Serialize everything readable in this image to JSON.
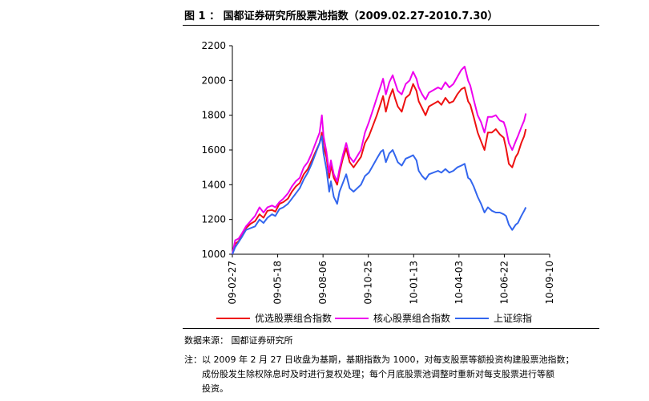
{
  "figure": {
    "title": "图 1 ： 国都证券研究所股票池指数（2009.02.27-2010.7.30）",
    "source": "数据来源： 国都证券研究所",
    "notes": [
      "注：以 2009 年 2 月 27 日收盘为基期，基期指数为 1000，对每支股票等额投资构建股票池指数；",
      "成份股发生除权除息时及时进行复权处理；每个月底股票池调整时重新对每支股票进行等额",
      "投资。"
    ]
  },
  "chart_data": {
    "type": "line",
    "title": "",
    "xlabel": "",
    "ylabel": "",
    "ylim": [
      1000,
      2200
    ],
    "yticks": [
      1000,
      1200,
      1400,
      1600,
      1800,
      2000,
      2200
    ],
    "xlim": [
      "2009-02-27",
      "2010-09-10"
    ],
    "xticks": [
      "09-02-27",
      "09-05-18",
      "09-08-06",
      "09-10-25",
      "10-01-13",
      "10-04-03",
      "10-06-22",
      "10-09-10"
    ],
    "xtick_dates": [
      "2009-02-27",
      "2009-05-18",
      "2009-08-06",
      "2009-10-25",
      "2010-01-13",
      "2010-04-03",
      "2010-06-22",
      "2010-09-10"
    ],
    "grid": false,
    "legend": "bottom",
    "series": [
      {
        "name": "优选股票组合指数",
        "color": "#ee1111",
        "points": [
          [
            "2009-02-27",
            1000
          ],
          [
            "2009-03-04",
            1060
          ],
          [
            "2009-03-10",
            1075
          ],
          [
            "2009-03-16",
            1110
          ],
          [
            "2009-03-23",
            1150
          ],
          [
            "2009-03-31",
            1175
          ],
          [
            "2009-04-08",
            1190
          ],
          [
            "2009-04-16",
            1230
          ],
          [
            "2009-04-23",
            1210
          ],
          [
            "2009-04-30",
            1250
          ],
          [
            "2009-05-08",
            1255
          ],
          [
            "2009-05-14",
            1245
          ],
          [
            "2009-05-21",
            1290
          ],
          [
            "2009-05-28",
            1300
          ],
          [
            "2009-06-05",
            1320
          ],
          [
            "2009-06-12",
            1360
          ],
          [
            "2009-06-19",
            1390
          ],
          [
            "2009-06-26",
            1410
          ],
          [
            "2009-07-03",
            1460
          ],
          [
            "2009-07-10",
            1490
          ],
          [
            "2009-07-17",
            1540
          ],
          [
            "2009-07-24",
            1590
          ],
          [
            "2009-07-31",
            1640
          ],
          [
            "2009-08-04",
            1700
          ],
          [
            "2009-08-07",
            1620
          ],
          [
            "2009-08-12",
            1560
          ],
          [
            "2009-08-17",
            1440
          ],
          [
            "2009-08-20",
            1510
          ],
          [
            "2009-08-25",
            1440
          ],
          [
            "2009-08-31",
            1400
          ],
          [
            "2009-09-04",
            1470
          ],
          [
            "2009-09-10",
            1550
          ],
          [
            "2009-09-16",
            1610
          ],
          [
            "2009-09-22",
            1530
          ],
          [
            "2009-09-29",
            1500
          ],
          [
            "2009-10-12",
            1560
          ],
          [
            "2009-10-19",
            1640
          ],
          [
            "2009-10-26",
            1680
          ],
          [
            "2009-11-02",
            1740
          ],
          [
            "2009-11-09",
            1800
          ],
          [
            "2009-11-16",
            1870
          ],
          [
            "2009-11-20",
            1910
          ],
          [
            "2009-11-25",
            1820
          ],
          [
            "2009-12-01",
            1900
          ],
          [
            "2009-12-07",
            1950
          ],
          [
            "2009-12-11",
            1900
          ],
          [
            "2009-12-16",
            1850
          ],
          [
            "2009-12-23",
            1820
          ],
          [
            "2009-12-30",
            1900
          ],
          [
            "2010-01-06",
            1920
          ],
          [
            "2010-01-12",
            1980
          ],
          [
            "2010-01-18",
            1940
          ],
          [
            "2010-01-22",
            1880
          ],
          [
            "2010-01-28",
            1840
          ],
          [
            "2010-02-03",
            1800
          ],
          [
            "2010-02-09",
            1850
          ],
          [
            "2010-02-25",
            1880
          ],
          [
            "2010-03-03",
            1860
          ],
          [
            "2010-03-10",
            1900
          ],
          [
            "2010-03-17",
            1870
          ],
          [
            "2010-03-24",
            1880
          ],
          [
            "2010-03-31",
            1920
          ],
          [
            "2010-04-07",
            1950
          ],
          [
            "2010-04-13",
            1960
          ],
          [
            "2010-04-19",
            1880
          ],
          [
            "2010-04-23",
            1860
          ],
          [
            "2010-04-29",
            1790
          ],
          [
            "2010-05-06",
            1700
          ],
          [
            "2010-05-12",
            1650
          ],
          [
            "2010-05-18",
            1600
          ],
          [
            "2010-05-24",
            1700
          ],
          [
            "2010-05-31",
            1700
          ],
          [
            "2010-06-07",
            1720
          ],
          [
            "2010-06-14",
            1690
          ],
          [
            "2010-06-21",
            1670
          ],
          [
            "2010-06-25",
            1610
          ],
          [
            "2010-06-30",
            1520
          ],
          [
            "2010-07-06",
            1500
          ],
          [
            "2010-07-12",
            1560
          ],
          [
            "2010-07-16",
            1580
          ],
          [
            "2010-07-22",
            1640
          ],
          [
            "2010-07-27",
            1680
          ],
          [
            "2010-07-30",
            1720
          ]
        ]
      },
      {
        "name": "核心股票组合指数",
        "color": "#ee00ee",
        "points": [
          [
            "2009-02-27",
            1000
          ],
          [
            "2009-03-04",
            1080
          ],
          [
            "2009-03-10",
            1090
          ],
          [
            "2009-03-16",
            1120
          ],
          [
            "2009-03-23",
            1160
          ],
          [
            "2009-03-31",
            1190
          ],
          [
            "2009-04-08",
            1220
          ],
          [
            "2009-04-16",
            1270
          ],
          [
            "2009-04-23",
            1240
          ],
          [
            "2009-04-30",
            1270
          ],
          [
            "2009-05-08",
            1280
          ],
          [
            "2009-05-14",
            1270
          ],
          [
            "2009-05-21",
            1300
          ],
          [
            "2009-05-28",
            1320
          ],
          [
            "2009-06-05",
            1350
          ],
          [
            "2009-06-12",
            1390
          ],
          [
            "2009-06-19",
            1420
          ],
          [
            "2009-06-26",
            1440
          ],
          [
            "2009-07-03",
            1500
          ],
          [
            "2009-07-10",
            1530
          ],
          [
            "2009-07-17",
            1580
          ],
          [
            "2009-07-24",
            1640
          ],
          [
            "2009-07-31",
            1700
          ],
          [
            "2009-08-04",
            1800
          ],
          [
            "2009-08-07",
            1680
          ],
          [
            "2009-08-12",
            1590
          ],
          [
            "2009-08-17",
            1470
          ],
          [
            "2009-08-20",
            1540
          ],
          [
            "2009-08-25",
            1460
          ],
          [
            "2009-08-31",
            1420
          ],
          [
            "2009-09-04",
            1490
          ],
          [
            "2009-09-10",
            1570
          ],
          [
            "2009-09-16",
            1640
          ],
          [
            "2009-09-22",
            1560
          ],
          [
            "2009-09-29",
            1530
          ],
          [
            "2009-10-12",
            1600
          ],
          [
            "2009-10-19",
            1700
          ],
          [
            "2009-10-26",
            1760
          ],
          [
            "2009-11-02",
            1830
          ],
          [
            "2009-11-09",
            1900
          ],
          [
            "2009-11-16",
            1970
          ],
          [
            "2009-11-20",
            2010
          ],
          [
            "2009-11-25",
            1920
          ],
          [
            "2009-12-01",
            1990
          ],
          [
            "2009-12-07",
            2030
          ],
          [
            "2009-12-11",
            1990
          ],
          [
            "2009-12-16",
            1940
          ],
          [
            "2009-12-23",
            1920
          ],
          [
            "2009-12-30",
            1980
          ],
          [
            "2010-01-06",
            2000
          ],
          [
            "2010-01-12",
            2050
          ],
          [
            "2010-01-18",
            2010
          ],
          [
            "2010-01-22",
            1960
          ],
          [
            "2010-01-28",
            1920
          ],
          [
            "2010-02-03",
            1890
          ],
          [
            "2010-02-09",
            1930
          ],
          [
            "2010-02-25",
            1960
          ],
          [
            "2010-03-03",
            1950
          ],
          [
            "2010-03-10",
            1990
          ],
          [
            "2010-03-17",
            1960
          ],
          [
            "2010-03-24",
            1980
          ],
          [
            "2010-03-31",
            2020
          ],
          [
            "2010-04-07",
            2060
          ],
          [
            "2010-04-13",
            2080
          ],
          [
            "2010-04-19",
            2000
          ],
          [
            "2010-04-23",
            1970
          ],
          [
            "2010-04-29",
            1890
          ],
          [
            "2010-05-06",
            1800
          ],
          [
            "2010-05-12",
            1760
          ],
          [
            "2010-05-18",
            1700
          ],
          [
            "2010-05-24",
            1790
          ],
          [
            "2010-05-31",
            1790
          ],
          [
            "2010-06-07",
            1800
          ],
          [
            "2010-06-14",
            1770
          ],
          [
            "2010-06-21",
            1760
          ],
          [
            "2010-06-25",
            1720
          ],
          [
            "2010-06-30",
            1640
          ],
          [
            "2010-07-06",
            1600
          ],
          [
            "2010-07-12",
            1650
          ],
          [
            "2010-07-16",
            1680
          ],
          [
            "2010-07-22",
            1730
          ],
          [
            "2010-07-27",
            1770
          ],
          [
            "2010-07-30",
            1810
          ]
        ]
      },
      {
        "name": "上证综指",
        "color": "#3366ee",
        "points": [
          [
            "2009-02-27",
            1000
          ],
          [
            "2009-03-04",
            1040
          ],
          [
            "2009-03-10",
            1070
          ],
          [
            "2009-03-16",
            1100
          ],
          [
            "2009-03-23",
            1140
          ],
          [
            "2009-03-31",
            1150
          ],
          [
            "2009-04-08",
            1160
          ],
          [
            "2009-04-16",
            1200
          ],
          [
            "2009-04-23",
            1180
          ],
          [
            "2009-04-30",
            1210
          ],
          [
            "2009-05-08",
            1230
          ],
          [
            "2009-05-14",
            1220
          ],
          [
            "2009-05-21",
            1260
          ],
          [
            "2009-05-28",
            1270
          ],
          [
            "2009-06-05",
            1290
          ],
          [
            "2009-06-12",
            1320
          ],
          [
            "2009-06-19",
            1350
          ],
          [
            "2009-06-26",
            1380
          ],
          [
            "2009-07-03",
            1430
          ],
          [
            "2009-07-10",
            1470
          ],
          [
            "2009-07-17",
            1520
          ],
          [
            "2009-07-24",
            1580
          ],
          [
            "2009-07-31",
            1640
          ],
          [
            "2009-08-04",
            1680
          ],
          [
            "2009-08-07",
            1580
          ],
          [
            "2009-08-12",
            1490
          ],
          [
            "2009-08-17",
            1360
          ],
          [
            "2009-08-20",
            1420
          ],
          [
            "2009-08-25",
            1330
          ],
          [
            "2009-08-31",
            1290
          ],
          [
            "2009-09-04",
            1360
          ],
          [
            "2009-09-10",
            1410
          ],
          [
            "2009-09-16",
            1460
          ],
          [
            "2009-09-22",
            1380
          ],
          [
            "2009-09-29",
            1360
          ],
          [
            "2009-10-12",
            1400
          ],
          [
            "2009-10-19",
            1450
          ],
          [
            "2009-10-26",
            1470
          ],
          [
            "2009-11-02",
            1510
          ],
          [
            "2009-11-09",
            1550
          ],
          [
            "2009-11-16",
            1590
          ],
          [
            "2009-11-20",
            1600
          ],
          [
            "2009-11-25",
            1530
          ],
          [
            "2009-12-01",
            1580
          ],
          [
            "2009-12-07",
            1600
          ],
          [
            "2009-12-11",
            1570
          ],
          [
            "2009-12-16",
            1530
          ],
          [
            "2009-12-23",
            1510
          ],
          [
            "2009-12-30",
            1550
          ],
          [
            "2010-01-06",
            1560
          ],
          [
            "2010-01-12",
            1570
          ],
          [
            "2010-01-18",
            1540
          ],
          [
            "2010-01-22",
            1480
          ],
          [
            "2010-01-28",
            1450
          ],
          [
            "2010-02-03",
            1430
          ],
          [
            "2010-02-09",
            1460
          ],
          [
            "2010-02-25",
            1480
          ],
          [
            "2010-03-03",
            1470
          ],
          [
            "2010-03-10",
            1490
          ],
          [
            "2010-03-17",
            1470
          ],
          [
            "2010-03-24",
            1480
          ],
          [
            "2010-03-31",
            1500
          ],
          [
            "2010-04-07",
            1510
          ],
          [
            "2010-04-13",
            1520
          ],
          [
            "2010-04-19",
            1440
          ],
          [
            "2010-04-23",
            1430
          ],
          [
            "2010-04-29",
            1390
          ],
          [
            "2010-05-06",
            1330
          ],
          [
            "2010-05-12",
            1290
          ],
          [
            "2010-05-18",
            1240
          ],
          [
            "2010-05-24",
            1270
          ],
          [
            "2010-05-31",
            1250
          ],
          [
            "2010-06-07",
            1240
          ],
          [
            "2010-06-14",
            1240
          ],
          [
            "2010-06-21",
            1230
          ],
          [
            "2010-06-25",
            1220
          ],
          [
            "2010-06-30",
            1170
          ],
          [
            "2010-07-06",
            1140
          ],
          [
            "2010-07-12",
            1170
          ],
          [
            "2010-07-16",
            1180
          ],
          [
            "2010-07-22",
            1220
          ],
          [
            "2010-07-27",
            1250
          ],
          [
            "2010-07-30",
            1270
          ]
        ]
      }
    ]
  }
}
